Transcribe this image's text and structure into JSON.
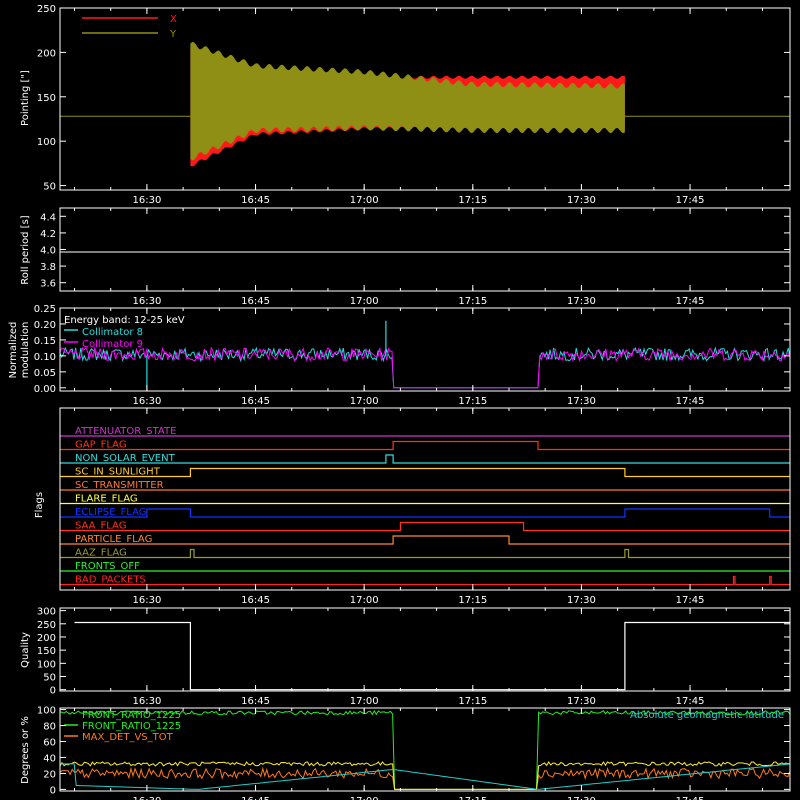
{
  "colors": {
    "background": "#000000",
    "frame": "#ffffff",
    "x_series": "#ff1a1a",
    "y_series": "#8f8f15",
    "cyan": "#22dddd",
    "magenta": "#ff00ff",
    "white": "#ffffff",
    "green": "#22ee22",
    "yellow": "#ffee33",
    "orange": "#ff7a1a",
    "flag_colors": {
      "ATTENUATOR_STATE": "#cc33cc",
      "GAP_FLAG": "#ff3311",
      "NON_SOLAR_EVENT": "#33dddd",
      "SC_IN_SUNLIGHT": "#ffcc22",
      "SC_TRANSMITTER": "#ff7733",
      "FLARE_FLAG": "#ffff44",
      "ECLIPSE_FLAG": "#1133ff",
      "SAA_FLAG": "#ff3322",
      "PARTICLE_FLAG": "#ff8833",
      "AAZ_FLAG": "#999933",
      "FRONTS_OFF": "#33ee33",
      "BAD_PACKETS": "#ff2222"
    }
  },
  "time_axis": {
    "ticks": [
      "16:30",
      "16:45",
      "17:00",
      "17:15",
      "17:30",
      "17:45"
    ],
    "range_min": [
      16.3,
      17.98
    ]
  },
  "chart_data": [
    {
      "type": "area",
      "ylabel": "Pointing [\"]",
      "ylim": [
        45,
        250
      ],
      "yticks": [
        50,
        100,
        150,
        200,
        250
      ],
      "legend": [
        {
          "name": "X",
          "color": "#ff1a1a"
        },
        {
          "name": "Y",
          "color": "#8f8f15"
        }
      ],
      "legend_position": "top-left",
      "baseline_value": 128,
      "active_window": [
        "16:36",
        "17:36"
      ],
      "series": [
        {
          "name": "X",
          "envelope": [
            {
              "t": "16:36",
              "min": 72,
              "max": 205
            },
            {
              "t": "16:45",
              "min": 108,
              "max": 178
            },
            {
              "t": "17:00",
              "min": 114,
              "max": 172
            },
            {
              "t": "17:15",
              "min": 115,
              "max": 172
            },
            {
              "t": "17:36",
              "min": 115,
              "max": 172
            }
          ]
        },
        {
          "name": "Y",
          "envelope": [
            {
              "t": "16:36",
              "min": 80,
              "max": 210
            },
            {
              "t": "16:45",
              "min": 112,
              "max": 185
            },
            {
              "t": "17:00",
              "min": 115,
              "max": 178
            },
            {
              "t": "17:15",
              "min": 112,
              "max": 164
            },
            {
              "t": "17:36",
              "min": 112,
              "max": 162
            }
          ]
        }
      ]
    },
    {
      "type": "line",
      "ylabel": "Roll period [s]",
      "ylim": [
        3.5,
        4.5
      ],
      "yticks": [
        "3.6",
        "3.8",
        "4.0",
        "4.2",
        "4.4"
      ],
      "series": [
        {
          "value": 3.97
        }
      ]
    },
    {
      "type": "line",
      "ylabel": "Normalized modulation",
      "ylabel_lines": [
        "Normalized",
        "modulation"
      ],
      "ylim": [
        -0.01,
        0.25
      ],
      "yticks": [
        "0.00",
        "0.05",
        "0.10",
        "0.15",
        "0.20",
        "0.25"
      ],
      "annotations": [
        "Energy band: 12-25 keV"
      ],
      "series": [
        {
          "name": "Collimator 8",
          "color": "#22dddd",
          "level": 0.105,
          "noise": 0.02
        },
        {
          "name": "Collimator 9",
          "color": "#ff00ff",
          "level": 0.105,
          "noise": 0.02
        }
      ],
      "gap_window": [
        "17:04",
        "17:24"
      ],
      "spikes": [
        {
          "t": "17:03",
          "value": 0.21
        },
        {
          "t": "16:30",
          "value": 0.0
        }
      ]
    },
    {
      "type": "line",
      "ylabel": "Flags",
      "flags": [
        {
          "name": "ATTENUATOR_STATE",
          "high": []
        },
        {
          "name": "GAP_FLAG",
          "high": [
            [
              "17:04",
              "17:24"
            ]
          ]
        },
        {
          "name": "NON_SOLAR_EVENT",
          "high": [
            [
              "17:03",
              "17:04"
            ]
          ]
        },
        {
          "name": "SC_IN_SUNLIGHT",
          "high": [
            [
              "16:36",
              "17:36"
            ]
          ]
        },
        {
          "name": "SC_TRANSMITTER",
          "high": []
        },
        {
          "name": "FLARE_FLAG",
          "high": []
        },
        {
          "name": "ECLIPSE_FLAG",
          "high": [
            [
              "16:30",
              "16:36"
            ],
            [
              "17:36",
              "17:56"
            ]
          ]
        },
        {
          "name": "SAA_FLAG",
          "high": [
            [
              "17:05",
              "17:22"
            ]
          ]
        },
        {
          "name": "PARTICLE_FLAG",
          "high": [
            [
              "17:04",
              "17:20"
            ]
          ]
        },
        {
          "name": "AAZ_FLAG",
          "high": [
            [
              "16:36",
              "16:36.5"
            ],
            [
              "17:36",
              "17:36.5"
            ]
          ]
        },
        {
          "name": "FRONTS_OFF",
          "high": []
        },
        {
          "name": "BAD_PACKETS",
          "high": [
            [
              "17:51",
              "17:51.2"
            ],
            [
              "17:56",
              "17:56.2"
            ]
          ]
        }
      ]
    },
    {
      "type": "line",
      "ylabel": "Quality",
      "ylim": [
        -5,
        310
      ],
      "yticks": [
        0,
        50,
        100,
        150,
        200,
        250,
        300
      ],
      "series": [
        {
          "points": [
            [
              "16:20",
              255
            ],
            [
              "16:36",
              255
            ],
            [
              "16:36",
              0
            ],
            [
              "17:36",
              0
            ],
            [
              "17:36",
              255
            ],
            [
              "17:59",
              255
            ]
          ]
        }
      ]
    },
    {
      "type": "line",
      "ylabel": "Degrees or %",
      "ylim": [
        -2,
        102
      ],
      "yticks": [
        0,
        20,
        40,
        60,
        80,
        100
      ],
      "legend": [
        {
          "name": "FRONT_RATIO_1225",
          "color": "#22ee22"
        },
        {
          "name": "MAX_DET_VS_TOT",
          "color": "#ff7a1a"
        }
      ],
      "overlaid_label": "FRONT_RATIO_1225",
      "right_label": "Absolute geomagnetic latitude",
      "gap_window": [
        "17:04",
        "17:24"
      ],
      "series": [
        {
          "name": "FRONT_RATIO_1225",
          "color": "#22ee22",
          "level": 96
        },
        {
          "name": "MAX_DET_VS_TOT",
          "color": "#ff7a1a",
          "level": 20
        },
        {
          "name": "Yellow",
          "color": "#ffee33",
          "level": 32
        },
        {
          "name": "Absolute geomagnetic latitude",
          "color": "#22cccc",
          "knots": [
            [
              "16:20",
              5
            ],
            [
              "16:37",
              0
            ],
            [
              "17:04",
              25
            ],
            [
              "17:24",
              0
            ],
            [
              "17:59",
              32
            ]
          ]
        }
      ]
    }
  ]
}
